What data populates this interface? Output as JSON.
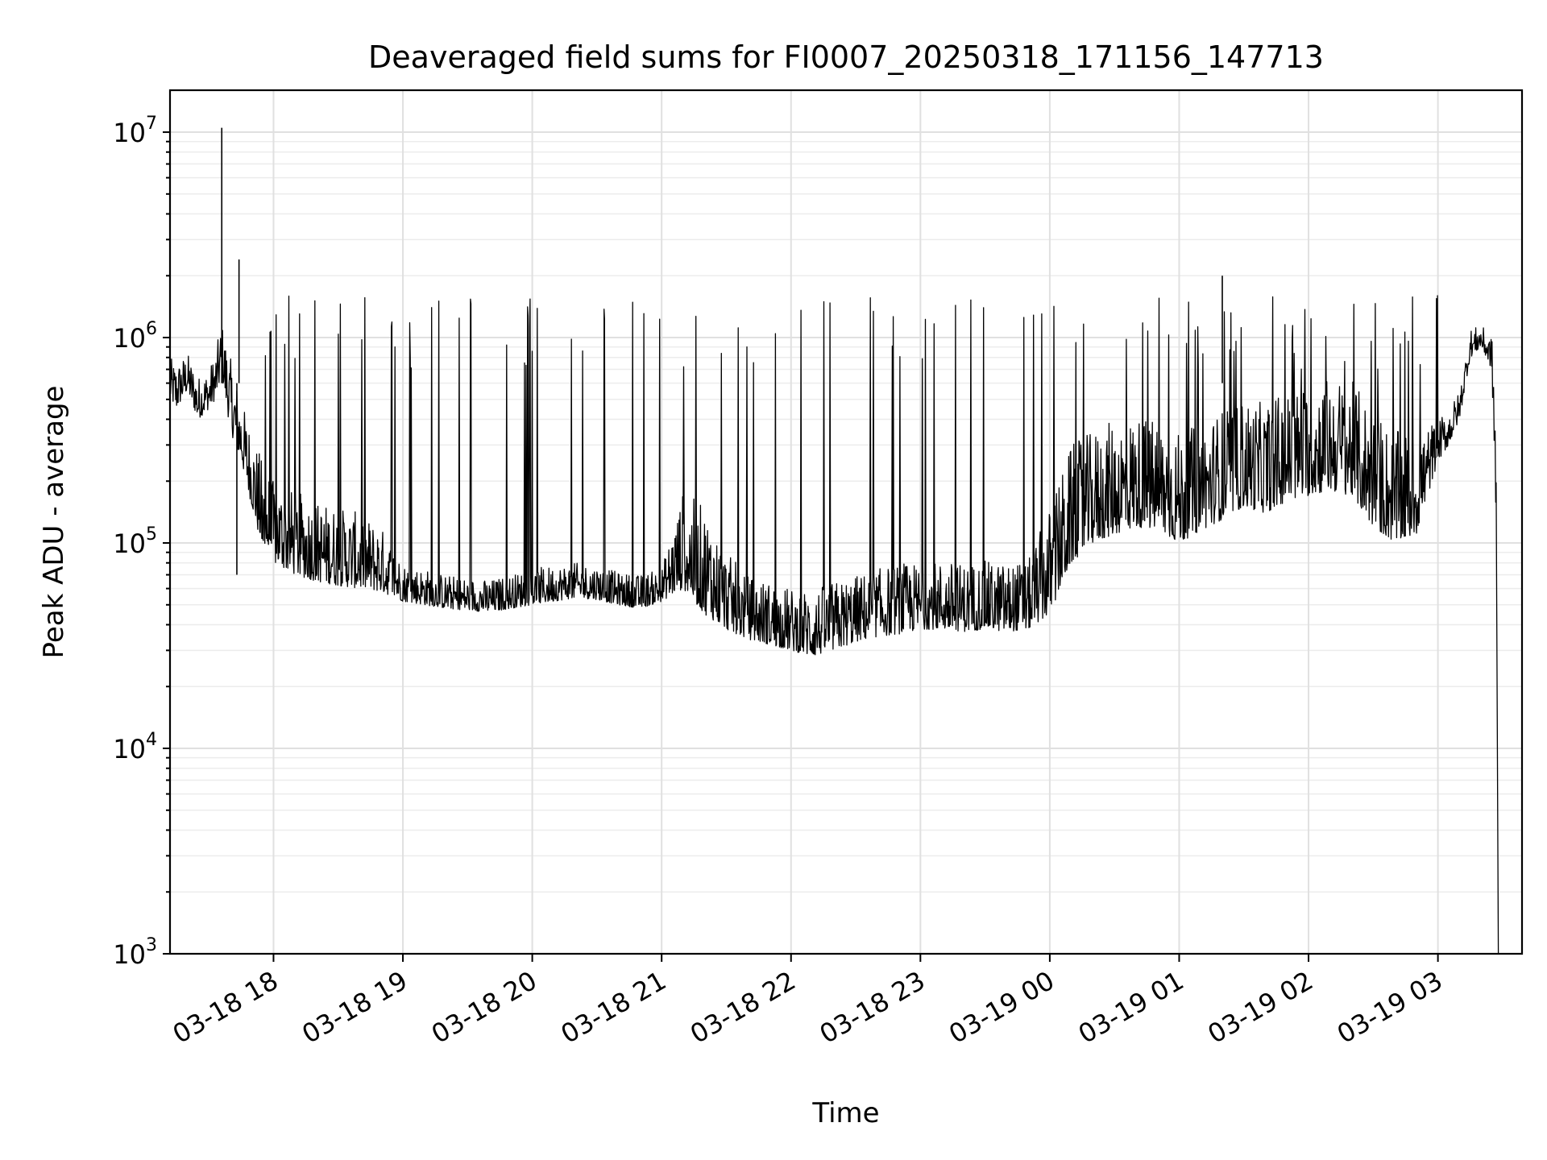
{
  "chart_data": {
    "type": "line",
    "title": "Deaveraged field sums for FI0007_20250318_171156_147713",
    "xlabel": "Time",
    "ylabel": "Peak ADU - average",
    "yscale": "log",
    "ylim": [
      1000,
      16000000
    ],
    "xlim": [
      "2025-03-18 17:12",
      "2025-03-19 03:39"
    ],
    "grid": "major and minor",
    "line_color": "#000000",
    "x_ticks": [
      {
        "value": "2025-03-18 18:00",
        "label": "03-18 18"
      },
      {
        "value": "2025-03-18 19:00",
        "label": "03-18 19"
      },
      {
        "value": "2025-03-18 20:00",
        "label": "03-18 20"
      },
      {
        "value": "2025-03-18 21:00",
        "label": "03-18 21"
      },
      {
        "value": "2025-03-18 22:00",
        "label": "03-18 22"
      },
      {
        "value": "2025-03-18 23:00",
        "label": "03-18 23"
      },
      {
        "value": "2025-03-19 00:00",
        "label": "03-19 00"
      },
      {
        "value": "2025-03-19 01:00",
        "label": "03-19 01"
      },
      {
        "value": "2025-03-19 02:00",
        "label": "03-19 02"
      },
      {
        "value": "2025-03-19 03:00",
        "label": "03-19 03"
      }
    ],
    "y_ticks": [
      {
        "value": 1000,
        "base": "10",
        "exp": "3"
      },
      {
        "value": 10000,
        "base": "10",
        "exp": "4"
      },
      {
        "value": 100000,
        "base": "10",
        "exp": "5"
      },
      {
        "value": 1000000,
        "base": "10",
        "exp": "6"
      },
      {
        "value": 10000000,
        "base": "10",
        "exp": "7"
      }
    ],
    "series": [
      {
        "x": [
          "2025-03-18 17:12",
          "2025-03-18 17:15",
          "2025-03-18 17:20",
          "2025-03-18 17:25",
          "2025-03-18 17:30",
          "2025-03-18 17:33",
          "2025-03-18 17:36",
          "2025-03-18 17:40",
          "2025-03-18 17:45",
          "2025-03-18 17:50",
          "2025-03-18 17:55",
          "2025-03-18 18:00",
          "2025-03-18 18:10",
          "2025-03-18 18:20",
          "2025-03-18 18:30",
          "2025-03-18 18:40",
          "2025-03-18 18:50",
          "2025-03-18 19:00",
          "2025-03-18 19:10",
          "2025-03-18 19:20",
          "2025-03-18 19:30",
          "2025-03-18 19:40",
          "2025-03-18 19:50",
          "2025-03-18 20:00",
          "2025-03-18 20:10",
          "2025-03-18 20:20",
          "2025-03-18 20:30",
          "2025-03-18 20:40",
          "2025-03-18 20:50",
          "2025-03-18 21:00",
          "2025-03-18 21:10",
          "2025-03-18 21:20",
          "2025-03-18 21:30",
          "2025-03-18 21:40",
          "2025-03-18 21:50",
          "2025-03-18 22:00",
          "2025-03-18 22:10",
          "2025-03-18 22:20",
          "2025-03-18 22:30",
          "2025-03-18 22:40",
          "2025-03-18 22:50",
          "2025-03-18 23:00",
          "2025-03-18 23:10",
          "2025-03-18 23:20",
          "2025-03-18 23:30",
          "2025-03-18 23:40",
          "2025-03-18 23:50",
          "2025-03-19 00:00",
          "2025-03-19 00:10",
          "2025-03-19 00:20",
          "2025-03-19 00:30",
          "2025-03-19 00:40",
          "2025-03-19 00:50",
          "2025-03-19 01:00",
          "2025-03-19 01:10",
          "2025-03-19 01:20",
          "2025-03-19 01:30",
          "2025-03-19 01:40",
          "2025-03-19 01:50",
          "2025-03-19 02:00",
          "2025-03-19 02:10",
          "2025-03-19 02:20",
          "2025-03-19 02:30",
          "2025-03-19 02:40",
          "2025-03-19 02:50",
          "2025-03-19 03:00",
          "2025-03-19 03:05",
          "2025-03-19 03:10",
          "2025-03-19 03:15",
          "2025-03-19 03:20",
          "2025-03-19 03:25",
          "2025-03-19 03:27",
          "2025-03-19 03:28"
        ],
        "low": [
          500000,
          450000,
          550000,
          400000,
          450000,
          500000,
          650000,
          350000,
          250000,
          150000,
          90000,
          80000,
          70000,
          65000,
          62000,
          60000,
          58000,
          52000,
          50000,
          48000,
          47000,
          46000,
          48000,
          50000,
          52000,
          54000,
          53000,
          50000,
          48000,
          52000,
          60000,
          45000,
          38000,
          34000,
          32000,
          30000,
          28000,
          30000,
          33000,
          35000,
          36000,
          38000,
          38000,
          37000,
          38000,
          37000,
          38000,
          45000,
          80000,
          100000,
          110000,
          120000,
          115000,
          100000,
          115000,
          130000,
          150000,
          140000,
          160000,
          170000,
          180000,
          170000,
          120000,
          100000,
          110000,
          250000,
          300000,
          400000,
          800000,
          900000,
          700000,
          100000,
          1000
        ],
        "high": [
          800000,
          750000,
          850000,
          650000,
          700000,
          850000,
          1200000,
          800000,
          500000,
          350000,
          250000,
          200000,
          180000,
          160000,
          150000,
          140000,
          120000,
          80000,
          75000,
          70000,
          68000,
          66000,
          70000,
          75000,
          78000,
          80000,
          78000,
          72000,
          70000,
          75000,
          180000,
          150000,
          90000,
          70000,
          65000,
          60000,
          60000,
          65000,
          70000,
          75000,
          80000,
          80000,
          82000,
          80000,
          82000,
          80000,
          82000,
          150000,
          300000,
          350000,
          400000,
          420000,
          400000,
          350000,
          380000,
          450000,
          500000,
          480000,
          550000,
          600000,
          650000,
          620000,
          450000,
          350000,
          350000,
          400000,
          450000,
          550000,
          1100000,
          1150000,
          1000000,
          700000,
          1000
        ],
        "spikes": [
          {
            "x": "2025-03-18 17:36",
            "y": 10500000
          },
          {
            "x": "2025-03-18 17:44",
            "y": 2400000
          },
          {
            "x": "2025-03-18 17:43",
            "y": 70000
          },
          {
            "x": "2025-03-19 01:20",
            "y": 2000000
          }
        ]
      }
    ]
  }
}
